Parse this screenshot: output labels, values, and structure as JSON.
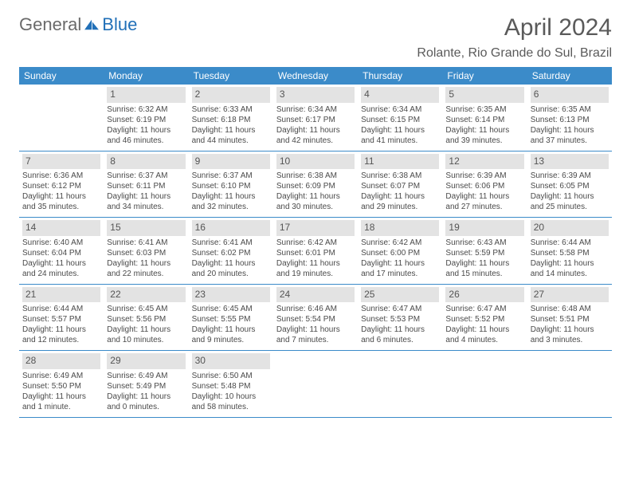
{
  "logo": {
    "part1": "General",
    "part2": "Blue"
  },
  "title": "April 2024",
  "location": "Rolante, Rio Grande do Sul, Brazil",
  "day_headers": [
    "Sunday",
    "Monday",
    "Tuesday",
    "Wednesday",
    "Thursday",
    "Friday",
    "Saturday"
  ],
  "colors": {
    "header_bg": "#3b8bc9",
    "header_text": "#ffffff",
    "daynum_bg": "#e3e3e3",
    "text": "#4a4a4a",
    "border": "#3b8bc9",
    "logo_blue": "#2170b8"
  },
  "weeks": [
    [
      {
        "n": "",
        "sr": "",
        "ss": "",
        "dl": ""
      },
      {
        "n": "1",
        "sr": "Sunrise: 6:32 AM",
        "ss": "Sunset: 6:19 PM",
        "dl": "Daylight: 11 hours and 46 minutes."
      },
      {
        "n": "2",
        "sr": "Sunrise: 6:33 AM",
        "ss": "Sunset: 6:18 PM",
        "dl": "Daylight: 11 hours and 44 minutes."
      },
      {
        "n": "3",
        "sr": "Sunrise: 6:34 AM",
        "ss": "Sunset: 6:17 PM",
        "dl": "Daylight: 11 hours and 42 minutes."
      },
      {
        "n": "4",
        "sr": "Sunrise: 6:34 AM",
        "ss": "Sunset: 6:15 PM",
        "dl": "Daylight: 11 hours and 41 minutes."
      },
      {
        "n": "5",
        "sr": "Sunrise: 6:35 AM",
        "ss": "Sunset: 6:14 PM",
        "dl": "Daylight: 11 hours and 39 minutes."
      },
      {
        "n": "6",
        "sr": "Sunrise: 6:35 AM",
        "ss": "Sunset: 6:13 PM",
        "dl": "Daylight: 11 hours and 37 minutes."
      }
    ],
    [
      {
        "n": "7",
        "sr": "Sunrise: 6:36 AM",
        "ss": "Sunset: 6:12 PM",
        "dl": "Daylight: 11 hours and 35 minutes."
      },
      {
        "n": "8",
        "sr": "Sunrise: 6:37 AM",
        "ss": "Sunset: 6:11 PM",
        "dl": "Daylight: 11 hours and 34 minutes."
      },
      {
        "n": "9",
        "sr": "Sunrise: 6:37 AM",
        "ss": "Sunset: 6:10 PM",
        "dl": "Daylight: 11 hours and 32 minutes."
      },
      {
        "n": "10",
        "sr": "Sunrise: 6:38 AM",
        "ss": "Sunset: 6:09 PM",
        "dl": "Daylight: 11 hours and 30 minutes."
      },
      {
        "n": "11",
        "sr": "Sunrise: 6:38 AM",
        "ss": "Sunset: 6:07 PM",
        "dl": "Daylight: 11 hours and 29 minutes."
      },
      {
        "n": "12",
        "sr": "Sunrise: 6:39 AM",
        "ss": "Sunset: 6:06 PM",
        "dl": "Daylight: 11 hours and 27 minutes."
      },
      {
        "n": "13",
        "sr": "Sunrise: 6:39 AM",
        "ss": "Sunset: 6:05 PM",
        "dl": "Daylight: 11 hours and 25 minutes."
      }
    ],
    [
      {
        "n": "14",
        "sr": "Sunrise: 6:40 AM",
        "ss": "Sunset: 6:04 PM",
        "dl": "Daylight: 11 hours and 24 minutes."
      },
      {
        "n": "15",
        "sr": "Sunrise: 6:41 AM",
        "ss": "Sunset: 6:03 PM",
        "dl": "Daylight: 11 hours and 22 minutes."
      },
      {
        "n": "16",
        "sr": "Sunrise: 6:41 AM",
        "ss": "Sunset: 6:02 PM",
        "dl": "Daylight: 11 hours and 20 minutes."
      },
      {
        "n": "17",
        "sr": "Sunrise: 6:42 AM",
        "ss": "Sunset: 6:01 PM",
        "dl": "Daylight: 11 hours and 19 minutes."
      },
      {
        "n": "18",
        "sr": "Sunrise: 6:42 AM",
        "ss": "Sunset: 6:00 PM",
        "dl": "Daylight: 11 hours and 17 minutes."
      },
      {
        "n": "19",
        "sr": "Sunrise: 6:43 AM",
        "ss": "Sunset: 5:59 PM",
        "dl": "Daylight: 11 hours and 15 minutes."
      },
      {
        "n": "20",
        "sr": "Sunrise: 6:44 AM",
        "ss": "Sunset: 5:58 PM",
        "dl": "Daylight: 11 hours and 14 minutes."
      }
    ],
    [
      {
        "n": "21",
        "sr": "Sunrise: 6:44 AM",
        "ss": "Sunset: 5:57 PM",
        "dl": "Daylight: 11 hours and 12 minutes."
      },
      {
        "n": "22",
        "sr": "Sunrise: 6:45 AM",
        "ss": "Sunset: 5:56 PM",
        "dl": "Daylight: 11 hours and 10 minutes."
      },
      {
        "n": "23",
        "sr": "Sunrise: 6:45 AM",
        "ss": "Sunset: 5:55 PM",
        "dl": "Daylight: 11 hours and 9 minutes."
      },
      {
        "n": "24",
        "sr": "Sunrise: 6:46 AM",
        "ss": "Sunset: 5:54 PM",
        "dl": "Daylight: 11 hours and 7 minutes."
      },
      {
        "n": "25",
        "sr": "Sunrise: 6:47 AM",
        "ss": "Sunset: 5:53 PM",
        "dl": "Daylight: 11 hours and 6 minutes."
      },
      {
        "n": "26",
        "sr": "Sunrise: 6:47 AM",
        "ss": "Sunset: 5:52 PM",
        "dl": "Daylight: 11 hours and 4 minutes."
      },
      {
        "n": "27",
        "sr": "Sunrise: 6:48 AM",
        "ss": "Sunset: 5:51 PM",
        "dl": "Daylight: 11 hours and 3 minutes."
      }
    ],
    [
      {
        "n": "28",
        "sr": "Sunrise: 6:49 AM",
        "ss": "Sunset: 5:50 PM",
        "dl": "Daylight: 11 hours and 1 minute."
      },
      {
        "n": "29",
        "sr": "Sunrise: 6:49 AM",
        "ss": "Sunset: 5:49 PM",
        "dl": "Daylight: 11 hours and 0 minutes."
      },
      {
        "n": "30",
        "sr": "Sunrise: 6:50 AM",
        "ss": "Sunset: 5:48 PM",
        "dl": "Daylight: 10 hours and 58 minutes."
      },
      {
        "n": "",
        "sr": "",
        "ss": "",
        "dl": ""
      },
      {
        "n": "",
        "sr": "",
        "ss": "",
        "dl": ""
      },
      {
        "n": "",
        "sr": "",
        "ss": "",
        "dl": ""
      },
      {
        "n": "",
        "sr": "",
        "ss": "",
        "dl": ""
      }
    ]
  ]
}
